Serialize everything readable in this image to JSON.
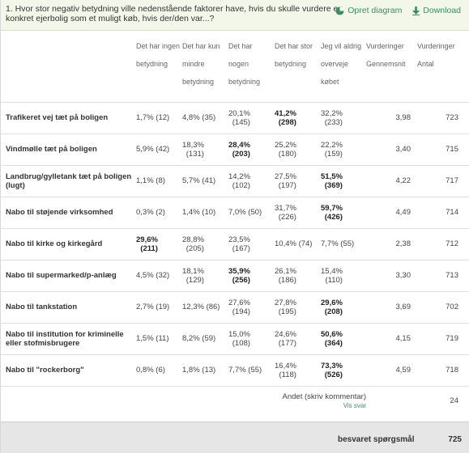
{
  "question": {
    "title": "1. Hvor stor negativ betydning ville nedenstående faktorer have, hvis du skulle vurdere en konkret ejerbolig som et muligt køb, hvis der/den var...?",
    "create_chart_label": "Opret diagram",
    "download_label": "Download"
  },
  "columns": [
    "Det har ingen betydning",
    "Det har kun mindre betydning",
    "Det har nogen betydning",
    "Det har stor betydning",
    "Jeg vil aldrig overveje købet",
    "Vurderinger Gennemsnit",
    "Vurderinger Antal"
  ],
  "rows": [
    {
      "label": "Trafikeret vej tæt på boligen",
      "cells": [
        "1,7% (12)",
        "4,8% (35)",
        "20,1% (145)",
        "41,2% (298)",
        "32,2% (233)"
      ],
      "bold": 3,
      "avg": "3,98",
      "count": "723"
    },
    {
      "label": "Vindmølle tæt på boligen",
      "cells": [
        "5,9% (42)",
        "18,3% (131)",
        "28,4% (203)",
        "25,2% (180)",
        "22,2% (159)"
      ],
      "bold": 2,
      "avg": "3,40",
      "count": "715"
    },
    {
      "label": "Landbrug/gylletank tæt på boligen (lugt)",
      "cells": [
        "1,1% (8)",
        "5,7% (41)",
        "14,2% (102)",
        "27,5% (197)",
        "51,5% (369)"
      ],
      "bold": 4,
      "avg": "4,22",
      "count": "717"
    },
    {
      "label": "Nabo til støjende virksomhed",
      "cells": [
        "0,3% (2)",
        "1,4% (10)",
        "7,0% (50)",
        "31,7% (226)",
        "59,7% (426)"
      ],
      "bold": 4,
      "avg": "4,49",
      "count": "714"
    },
    {
      "label": "Nabo til kirke og kirkegård",
      "cells": [
        "29,6% (211)",
        "28,8% (205)",
        "23,5% (167)",
        "10,4% (74)",
        "7,7% (55)"
      ],
      "bold": 0,
      "avg": "2,38",
      "count": "712"
    },
    {
      "label": "Nabo til supermarked/p-anlæg",
      "cells": [
        "4,5% (32)",
        "18,1% (129)",
        "35,9% (256)",
        "26,1% (186)",
        "15,4% (110)"
      ],
      "bold": 2,
      "avg": "3,30",
      "count": "713"
    },
    {
      "label": "Nabo til tankstation",
      "cells": [
        "2,7% (19)",
        "12,3% (86)",
        "27,6% (194)",
        "27,8% (195)",
        "29,6% (208)"
      ],
      "bold": 4,
      "avg": "3,69",
      "count": "702"
    },
    {
      "label": "Nabo til institution for kriminelle eller stofmisbrugere",
      "cells": [
        "1,5% (11)",
        "8,2% (59)",
        "15,0% (108)",
        "24,6% (177)",
        "50,6% (364)"
      ],
      "bold": 4,
      "avg": "4,15",
      "count": "719"
    },
    {
      "label": "Nabo til \"rockerborg\"",
      "cells": [
        "0,8% (6)",
        "1,8% (13)",
        "7,7% (55)",
        "16,4% (118)",
        "73,3% (526)"
      ],
      "bold": 4,
      "avg": "4,59",
      "count": "718"
    }
  ],
  "other": {
    "label": "Andet (skriv kommentar)",
    "link": "Vis svar",
    "count": "24"
  },
  "footer": {
    "label": "besvaret spørgsmål",
    "count": "725"
  },
  "colors": {
    "header_bg": "#f2f7e9",
    "accent": "#3d8d63",
    "footer_bg": "#e6e6e6"
  }
}
